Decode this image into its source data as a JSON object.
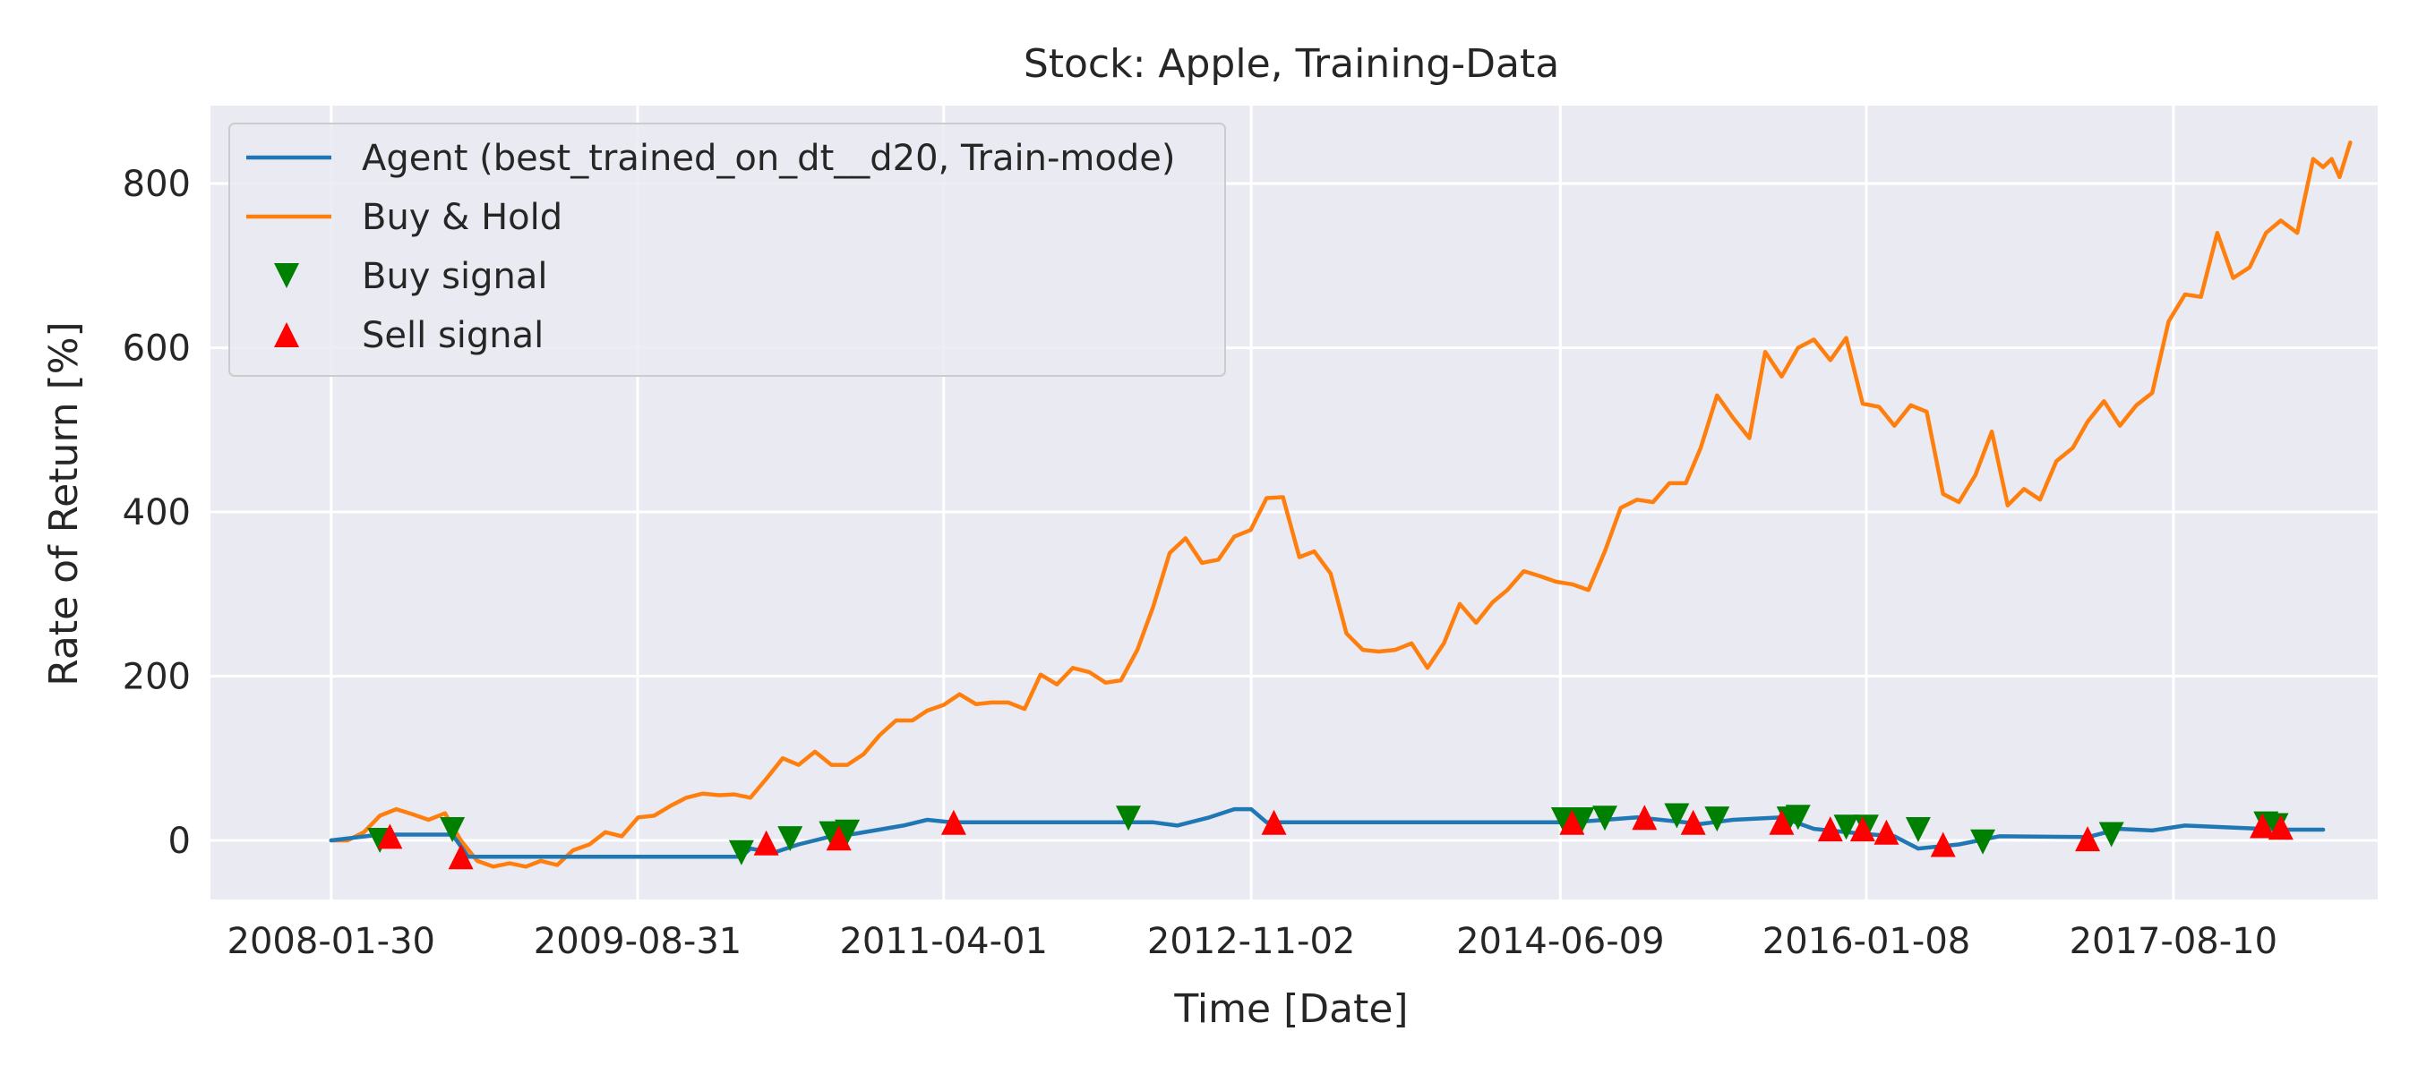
{
  "chart_data": {
    "type": "line",
    "title": "Stock: Apple, Training-Data",
    "xlabel": "Time [Date]",
    "ylabel": "Rate of Return [%]",
    "x_ticks": [
      "2008-01-30",
      "2009-08-31",
      "2011-04-01",
      "2012-11-02",
      "2014-06-09",
      "2016-01-08",
      "2017-08-10"
    ],
    "y_ticks": [
      0,
      200,
      400,
      600,
      800
    ],
    "xlim": [
      "2007-06-16",
      "2018-08-31"
    ],
    "ylim": [
      -72,
      895
    ],
    "grid": true,
    "legend_position": "top-left",
    "legend": [
      {
        "label": "Agent (best_trained_on_dt__d20, Train-mode)",
        "kind": "line",
        "color": "#1f77b4"
      },
      {
        "label": "Buy & Hold",
        "kind": "line",
        "color": "#ff7f0e"
      },
      {
        "label": "Buy signal",
        "kind": "marker-down",
        "color": "#008000"
      },
      {
        "label": "Sell signal",
        "kind": "marker-up",
        "color": "#ff0000"
      }
    ],
    "series": [
      {
        "name": "Agent (best_trained_on_dt__d20, Train-mode)",
        "color": "#1f77b4",
        "points": [
          [
            "2008-01-30",
            0
          ],
          [
            "2008-05-01",
            7
          ],
          [
            "2008-09-15",
            7
          ],
          [
            "2008-10-15",
            -20
          ],
          [
            "2010-03-15",
            -20
          ],
          [
            "2010-04-01",
            -10
          ],
          [
            "2010-05-15",
            -15
          ],
          [
            "2010-07-01",
            -5
          ],
          [
            "2010-09-01",
            5
          ],
          [
            "2010-10-15",
            8
          ],
          [
            "2011-01-15",
            18
          ],
          [
            "2011-03-01",
            25
          ],
          [
            "2011-04-15",
            22
          ],
          [
            "2012-05-01",
            22
          ],
          [
            "2012-06-15",
            18
          ],
          [
            "2012-08-15",
            28
          ],
          [
            "2012-10-01",
            38
          ],
          [
            "2012-11-02",
            38
          ],
          [
            "2012-12-01",
            22
          ],
          [
            "2014-07-01",
            22
          ],
          [
            "2014-11-01",
            28
          ],
          [
            "2015-03-01",
            20
          ],
          [
            "2015-05-01",
            25
          ],
          [
            "2015-08-01",
            28
          ],
          [
            "2015-10-01",
            14
          ],
          [
            "2016-01-01",
            8
          ],
          [
            "2016-03-01",
            5
          ],
          [
            "2016-04-15",
            -10
          ],
          [
            "2016-07-01",
            -5
          ],
          [
            "2016-09-15",
            5
          ],
          [
            "2017-03-01",
            4
          ],
          [
            "2017-05-01",
            14
          ],
          [
            "2017-07-01",
            12
          ],
          [
            "2017-09-01",
            18
          ],
          [
            "2018-03-01",
            13
          ],
          [
            "2018-05-20",
            13
          ]
        ]
      },
      {
        "name": "Buy & Hold",
        "color": "#ff7f0e",
        "points": [
          [
            "2008-01-30",
            0
          ],
          [
            "2008-03-01",
            0
          ],
          [
            "2008-04-01",
            10
          ],
          [
            "2008-05-01",
            30
          ],
          [
            "2008-06-01",
            38
          ],
          [
            "2008-07-01",
            32
          ],
          [
            "2008-08-01",
            25
          ],
          [
            "2008-09-01",
            33
          ],
          [
            "2008-10-01",
            0
          ],
          [
            "2008-11-01",
            -25
          ],
          [
            "2008-12-01",
            -32
          ],
          [
            "2009-01-01",
            -28
          ],
          [
            "2009-02-01",
            -32
          ],
          [
            "2009-03-01",
            -25
          ],
          [
            "2009-04-01",
            -30
          ],
          [
            "2009-05-01",
            -12
          ],
          [
            "2009-06-01",
            -5
          ],
          [
            "2009-07-01",
            10
          ],
          [
            "2009-08-01",
            5
          ],
          [
            "2009-09-01",
            28
          ],
          [
            "2009-10-01",
            30
          ],
          [
            "2009-11-01",
            42
          ],
          [
            "2009-12-01",
            52
          ],
          [
            "2010-01-01",
            57
          ],
          [
            "2010-02-01",
            55
          ],
          [
            "2010-03-01",
            56
          ],
          [
            "2010-04-01",
            52
          ],
          [
            "2010-05-01",
            75
          ],
          [
            "2010-06-01",
            100
          ],
          [
            "2010-07-01",
            92
          ],
          [
            "2010-08-01",
            108
          ],
          [
            "2010-09-01",
            92
          ],
          [
            "2010-10-01",
            92
          ],
          [
            "2010-11-01",
            105
          ],
          [
            "2010-12-01",
            128
          ],
          [
            "2011-01-01",
            146
          ],
          [
            "2011-02-01",
            146
          ],
          [
            "2011-03-01",
            158
          ],
          [
            "2011-04-01",
            165
          ],
          [
            "2011-05-01",
            178
          ],
          [
            "2011-06-01",
            166
          ],
          [
            "2011-07-01",
            168
          ],
          [
            "2011-08-01",
            168
          ],
          [
            "2011-09-01",
            160
          ],
          [
            "2011-10-01",
            202
          ],
          [
            "2011-11-01",
            190
          ],
          [
            "2011-12-01",
            210
          ],
          [
            "2012-01-01",
            205
          ],
          [
            "2012-02-01",
            192
          ],
          [
            "2012-03-01",
            195
          ],
          [
            "2012-04-01",
            232
          ],
          [
            "2012-05-01",
            285
          ],
          [
            "2012-06-01",
            350
          ],
          [
            "2012-07-01",
            368
          ],
          [
            "2012-08-01",
            338
          ],
          [
            "2012-09-01",
            342
          ],
          [
            "2012-10-01",
            370
          ],
          [
            "2012-11-01",
            378
          ],
          [
            "2012-12-01",
            417
          ],
          [
            "2013-01-01",
            418
          ],
          [
            "2013-02-01",
            345
          ],
          [
            "2013-03-01",
            352
          ],
          [
            "2013-04-01",
            325
          ],
          [
            "2013-05-01",
            252
          ],
          [
            "2013-06-01",
            232
          ],
          [
            "2013-07-01",
            230
          ],
          [
            "2013-08-01",
            232
          ],
          [
            "2013-09-01",
            240
          ],
          [
            "2013-10-01",
            210
          ],
          [
            "2013-11-01",
            240
          ],
          [
            "2013-12-01",
            288
          ],
          [
            "2014-01-01",
            265
          ],
          [
            "2014-02-01",
            290
          ],
          [
            "2014-03-01",
            305
          ],
          [
            "2014-04-01",
            328
          ],
          [
            "2014-05-01",
            322
          ],
          [
            "2014-06-01",
            315
          ],
          [
            "2014-07-01",
            312
          ],
          [
            "2014-08-01",
            305
          ],
          [
            "2014-09-01",
            352
          ],
          [
            "2014-10-01",
            405
          ],
          [
            "2014-11-01",
            415
          ],
          [
            "2014-12-01",
            412
          ],
          [
            "2015-01-01",
            435
          ],
          [
            "2015-02-01",
            435
          ],
          [
            "2015-03-01",
            478
          ],
          [
            "2015-04-01",
            542
          ],
          [
            "2015-05-01",
            515
          ],
          [
            "2015-06-01",
            490
          ],
          [
            "2015-07-01",
            595
          ],
          [
            "2015-08-01",
            565
          ],
          [
            "2015-09-01",
            600
          ],
          [
            "2015-10-01",
            610
          ],
          [
            "2015-11-01",
            585
          ],
          [
            "2015-12-01",
            612
          ],
          [
            "2016-01-01",
            532
          ],
          [
            "2016-02-01",
            528
          ],
          [
            "2016-03-01",
            505
          ],
          [
            "2016-04-01",
            530
          ],
          [
            "2016-05-01",
            522
          ],
          [
            "2016-06-01",
            422
          ],
          [
            "2016-07-01",
            412
          ],
          [
            "2016-08-01",
            445
          ],
          [
            "2016-09-01",
            498
          ],
          [
            "2016-10-01",
            408
          ],
          [
            "2016-11-01",
            428
          ],
          [
            "2016-12-01",
            415
          ],
          [
            "2017-01-01",
            462
          ],
          [
            "2017-02-01",
            478
          ],
          [
            "2017-03-01",
            510
          ],
          [
            "2017-04-01",
            535
          ],
          [
            "2017-05-01",
            505
          ],
          [
            "2017-06-01",
            530
          ],
          [
            "2017-07-01",
            545
          ],
          [
            "2017-08-01",
            632
          ],
          [
            "2017-09-01",
            665
          ],
          [
            "2017-10-01",
            662
          ],
          [
            "2017-11-01",
            740
          ],
          [
            "2017-12-01",
            685
          ],
          [
            "2018-01-01",
            698
          ],
          [
            "2018-02-01",
            740
          ],
          [
            "2018-03-01",
            755
          ],
          [
            "2018-04-01",
            740
          ],
          [
            "2018-05-01",
            830
          ],
          [
            "2018-05-20",
            820
          ],
          [
            "2018-06-05",
            830
          ],
          [
            "2018-06-20",
            808
          ],
          [
            "2018-07-10",
            850
          ]
        ]
      }
    ],
    "buy_signals": [
      [
        "2008-05-01",
        0
      ],
      [
        "2008-09-15",
        13
      ],
      [
        "2010-03-15",
        -15
      ],
      [
        "2010-06-15",
        2
      ],
      [
        "2010-09-01",
        8
      ],
      [
        "2010-10-01",
        10
      ],
      [
        "2012-03-15",
        27
      ],
      [
        "2014-06-15",
        25
      ],
      [
        "2014-07-20",
        25
      ],
      [
        "2014-09-01",
        27
      ],
      [
        "2015-01-15",
        30
      ],
      [
        "2015-04-01",
        26
      ],
      [
        "2015-08-15",
        26
      ],
      [
        "2015-09-01",
        28
      ],
      [
        "2015-12-01",
        16
      ],
      [
        "2016-01-08",
        16
      ],
      [
        "2016-04-15",
        13
      ],
      [
        "2016-08-15",
        -2
      ],
      [
        "2017-04-15",
        7
      ],
      [
        "2018-02-01",
        20
      ],
      [
        "2018-02-20",
        18
      ]
    ],
    "sell_signals": [
      [
        "2008-05-20",
        5
      ],
      [
        "2008-10-01",
        -20
      ],
      [
        "2010-05-01",
        -3
      ],
      [
        "2010-09-15",
        3
      ],
      [
        "2011-04-20",
        22
      ],
      [
        "2012-12-15",
        22
      ],
      [
        "2014-07-01",
        22
      ],
      [
        "2014-11-15",
        28
      ],
      [
        "2015-02-15",
        22
      ],
      [
        "2015-08-01",
        22
      ],
      [
        "2015-11-01",
        14
      ],
      [
        "2016-01-01",
        14
      ],
      [
        "2016-02-15",
        10
      ],
      [
        "2016-06-01",
        -5
      ],
      [
        "2017-03-01",
        2
      ],
      [
        "2018-01-25",
        18
      ],
      [
        "2018-03-01",
        16
      ]
    ]
  }
}
